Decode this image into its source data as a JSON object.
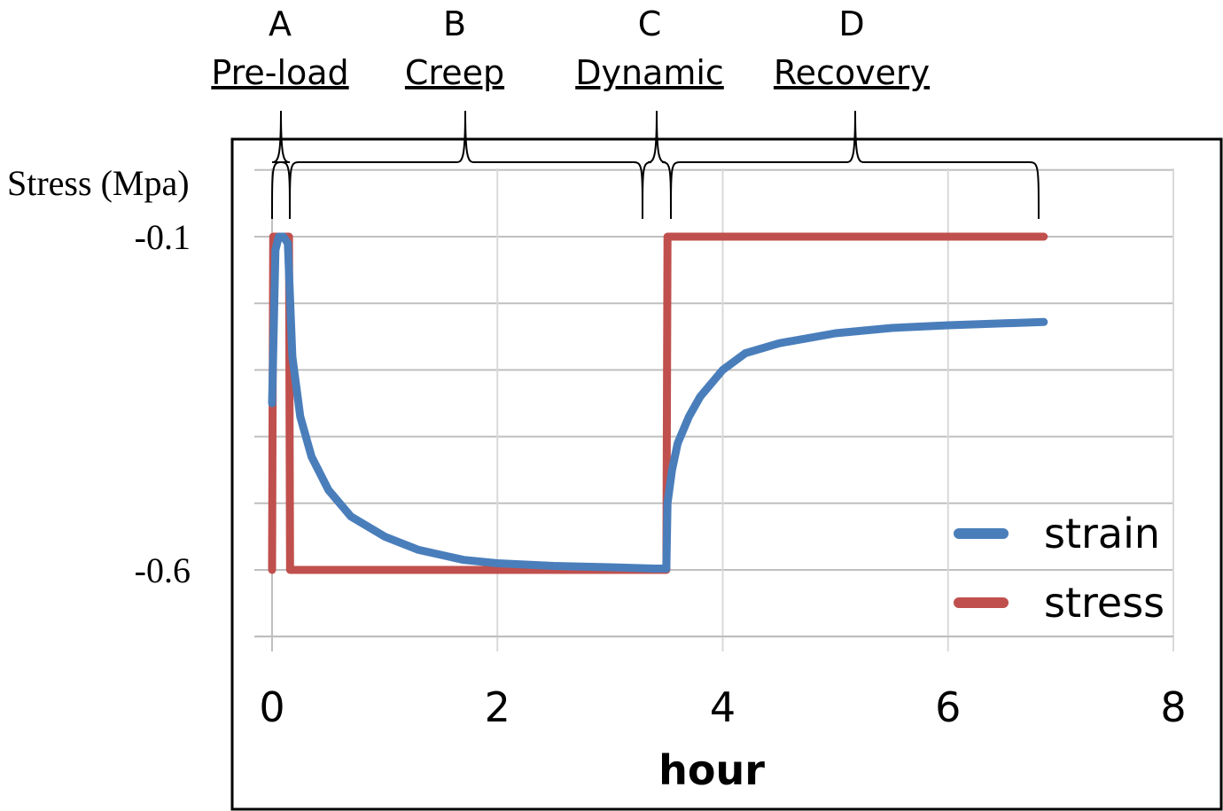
{
  "chart_data": {
    "type": "line",
    "xlabel": "hour",
    "ylabel": "Stress (Mpa)",
    "xlim": [
      0,
      8
    ],
    "x_ticks": [
      "0",
      "2",
      "4",
      "6",
      "8"
    ],
    "ylim": [
      -0.75,
      -0.0
    ],
    "y_ticks": [
      "-0.1",
      "-0.6"
    ],
    "grid": true,
    "legend_position": "bottom-right",
    "phases": [
      {
        "letter": "A",
        "name": "Pre-load"
      },
      {
        "letter": "B",
        "name": "Creep"
      },
      {
        "letter": "C",
        "name": "Dynamic"
      },
      {
        "letter": "D",
        "name": "Recovery"
      }
    ],
    "series": [
      {
        "name": "strain",
        "color": "#4a7ebb",
        "x": [
          0.0,
          0.03,
          0.06,
          0.1,
          0.14,
          0.18,
          0.25,
          0.35,
          0.5,
          0.7,
          1.0,
          1.3,
          1.7,
          2.0,
          2.5,
          3.0,
          3.4,
          3.5,
          3.51,
          3.55,
          3.6,
          3.7,
          3.8,
          4.0,
          4.2,
          4.5,
          5.0,
          5.5,
          6.0,
          6.5,
          6.85
        ],
        "y": [
          -0.35,
          -0.12,
          -0.1,
          -0.1,
          -0.11,
          -0.28,
          -0.37,
          -0.43,
          -0.48,
          -0.52,
          -0.55,
          -0.57,
          -0.585,
          -0.59,
          -0.594,
          -0.596,
          -0.598,
          -0.598,
          -0.5,
          -0.45,
          -0.41,
          -0.37,
          -0.34,
          -0.3,
          -0.275,
          -0.26,
          -0.245,
          -0.237,
          -0.233,
          -0.23,
          -0.228
        ]
      },
      {
        "name": "stress",
        "color": "#c0504d",
        "x": [
          0.0,
          0.005,
          0.01,
          0.05,
          0.1,
          0.15,
          0.16,
          0.2,
          1.0,
          2.0,
          3.0,
          3.5,
          3.51,
          3.55,
          4.0,
          5.0,
          6.0,
          6.85
        ],
        "y": [
          -0.6,
          -0.35,
          -0.1,
          -0.1,
          -0.1,
          -0.1,
          -0.6,
          -0.6,
          -0.6,
          -0.6,
          -0.6,
          -0.6,
          -0.1,
          -0.1,
          -0.1,
          -0.1,
          -0.1,
          -0.1
        ]
      }
    ]
  }
}
